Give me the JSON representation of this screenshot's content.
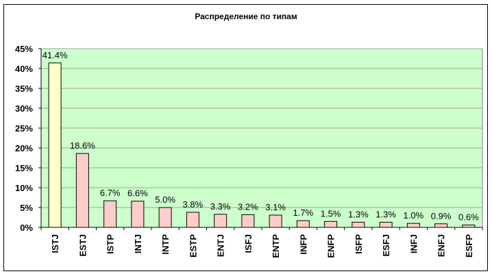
{
  "chart_data": {
    "type": "bar",
    "title": "Распределение по типам",
    "categories": [
      "ISTJ",
      "ESTJ",
      "ISTP",
      "INTJ",
      "INTP",
      "ESTP",
      "ENTJ",
      "ISFJ",
      "ENTP",
      "INFP",
      "ENFP",
      "ISFP",
      "ESFJ",
      "INFJ",
      "ENFJ",
      "ESFP"
    ],
    "values": [
      41.4,
      18.6,
      6.7,
      6.6,
      5.0,
      3.8,
      3.3,
      3.2,
      3.1,
      1.7,
      1.5,
      1.3,
      1.3,
      1.0,
      0.9,
      0.6
    ],
    "data_labels": [
      "41.4%",
      "18.6%",
      "6.7%",
      "6.6%",
      "5.0%",
      "3.8%",
      "3.3%",
      "3.2%",
      "3.1%",
      "1.7%",
      "1.5%",
      "1.3%",
      "1.3%",
      "1.0%",
      "0.9%",
      "0.6%"
    ],
    "yticks": [
      "0%",
      "5%",
      "10%",
      "15%",
      "20%",
      "25%",
      "30%",
      "35%",
      "40%",
      "45%"
    ],
    "ylim": [
      0,
      45
    ],
    "xlabel": "",
    "ylabel": "",
    "grid": true,
    "legend": "none",
    "colors": {
      "plot_background": "#CCFFCC",
      "first_bar": "#FFFFCC",
      "bars": "#FFCCCC",
      "gridline": "#A0A0A0",
      "bar_border": "#000000"
    }
  }
}
